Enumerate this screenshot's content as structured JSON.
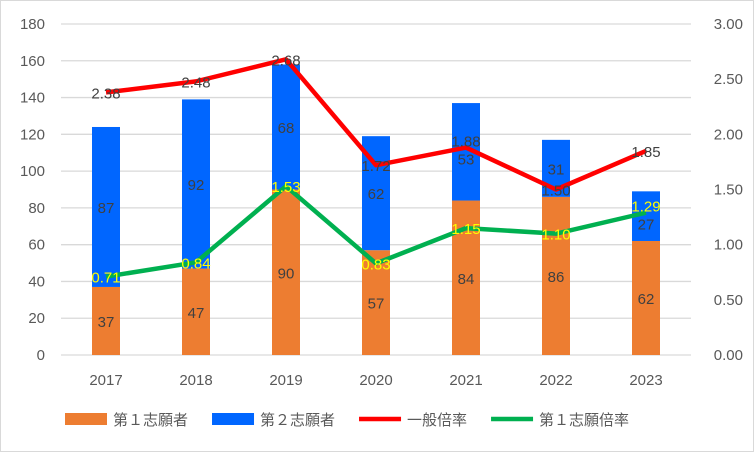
{
  "chart_data": {
    "type": "bar",
    "stacked": true,
    "categories": [
      "2017",
      "2018",
      "2019",
      "2020",
      "2021",
      "2022",
      "2023"
    ],
    "series": [
      {
        "name": "第１志願者",
        "type": "bar",
        "axis": "left",
        "color": "#ED7D31",
        "label_color": "#404040",
        "values": [
          37,
          47,
          90,
          57,
          84,
          86,
          62
        ]
      },
      {
        "name": "第２志願者",
        "type": "bar",
        "axis": "left",
        "color": "#0066FF",
        "label_color": "#404040",
        "values": [
          87,
          92,
          68,
          62,
          53,
          31,
          27
        ]
      },
      {
        "name": "一般倍率",
        "type": "line",
        "axis": "right",
        "color": "#FF0000",
        "label_color": "#404040",
        "values": [
          2.38,
          2.48,
          2.68,
          1.72,
          1.88,
          1.5,
          1.85
        ]
      },
      {
        "name": "第１志願倍率",
        "type": "line",
        "axis": "right",
        "color": "#00B050",
        "label_color": "#FFFF00",
        "values": [
          0.71,
          0.84,
          1.53,
          0.83,
          1.15,
          1.1,
          1.29
        ]
      }
    ],
    "y_left": {
      "min": 0,
      "max": 180,
      "ticks": [
        "0",
        "20",
        "40",
        "60",
        "80",
        "100",
        "120",
        "140",
        "160",
        "180"
      ]
    },
    "y_right": {
      "min": 0,
      "max": 3,
      "ticks": [
        "0.00",
        "0.50",
        "1.00",
        "1.50",
        "2.00",
        "2.50",
        "3.00"
      ]
    },
    "grid": true,
    "legend": "bottom"
  }
}
